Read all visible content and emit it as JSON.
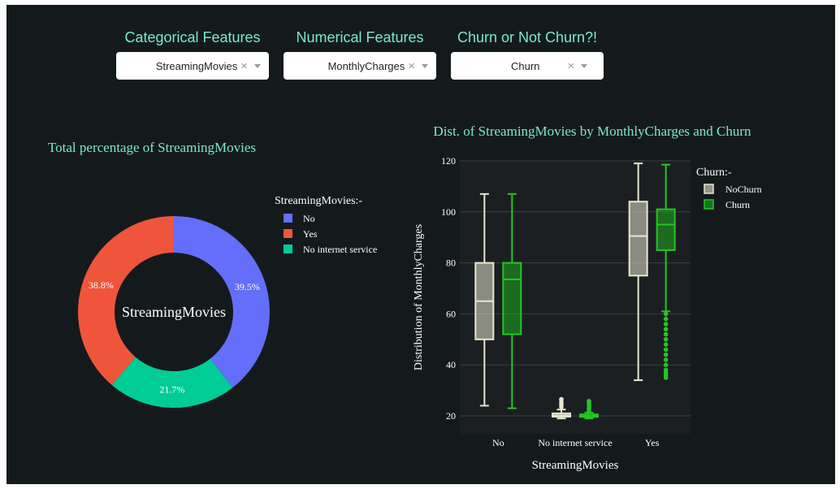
{
  "controls": [
    {
      "label": "Categorical Features",
      "value": "StreamingMovies"
    },
    {
      "label": "Numerical Features",
      "value": "MonthlyCharges"
    },
    {
      "label": "Churn or Not Churn?!",
      "value": "Churn"
    }
  ],
  "clear_glyph": "×",
  "colors": {
    "background": "#141a1c",
    "accent": "#7de8cf",
    "no": "#636efa",
    "yes": "#ef553b",
    "nis": "#00cc96",
    "nochurn": "#e8e6d2",
    "churn": "#22c722"
  },
  "chart_data": [
    {
      "type": "pie",
      "title": "Total percentage of StreamingMovies",
      "center_text": "StreamingMovies",
      "legend_title": "StreamingMovies:-",
      "labels": [
        "No",
        "Yes",
        "No internet service"
      ],
      "values": [
        39.5,
        38.8,
        21.7
      ],
      "value_labels": [
        "39.5%",
        "38.8%",
        "21.7%"
      ],
      "colors": [
        "#636efa",
        "#ef553b",
        "#00cc96"
      ],
      "hole": true,
      "legend_position": "right"
    },
    {
      "type": "box",
      "title": "Dist. of StreamingMovies by MonthlyCharges and Churn",
      "xlabel": "StreamingMovies",
      "ylabel": "Distribution of MonthlyCharges",
      "categories": [
        "No",
        "No internet service",
        "Yes"
      ],
      "ylim": [
        13,
        120
      ],
      "yticks": [
        20,
        40,
        60,
        80,
        100,
        120
      ],
      "legend_title": "Churn:-",
      "legend_position": "right",
      "grid": true,
      "series": [
        {
          "name": "NoChurn",
          "color": "#e8e6d2",
          "boxes": [
            {
              "min": 24,
              "q1": 50,
              "median": 65,
              "q3": 80,
              "max": 107,
              "outliers": []
            },
            {
              "min": 19,
              "q1": 19.7,
              "median": 20.2,
              "q3": 21,
              "max": 22.5,
              "outliers": [
                23.5,
                24.5,
                25.5,
                26.5
              ]
            },
            {
              "min": 34,
              "q1": 75,
              "median": 90.5,
              "q3": 104,
              "max": 119,
              "outliers": []
            }
          ]
        },
        {
          "name": "Churn",
          "color": "#22c722",
          "boxes": [
            {
              "min": 23,
              "q1": 52,
              "median": 73.5,
              "q3": 80,
              "max": 107,
              "outliers": []
            },
            {
              "min": 19,
              "q1": 19.6,
              "median": 20.1,
              "q3": 20.6,
              "max": 21.3,
              "outliers": [
                22,
                23,
                24,
                25,
                25.8
              ]
            },
            {
              "min": 61,
              "q1": 85,
              "median": 95,
              "q3": 101,
              "max": 118.5,
              "outliers": [
                35,
                36,
                37,
                38,
                40,
                42,
                44,
                46,
                48,
                50,
                52,
                54,
                56,
                58,
                60
              ]
            }
          ]
        }
      ]
    }
  ]
}
